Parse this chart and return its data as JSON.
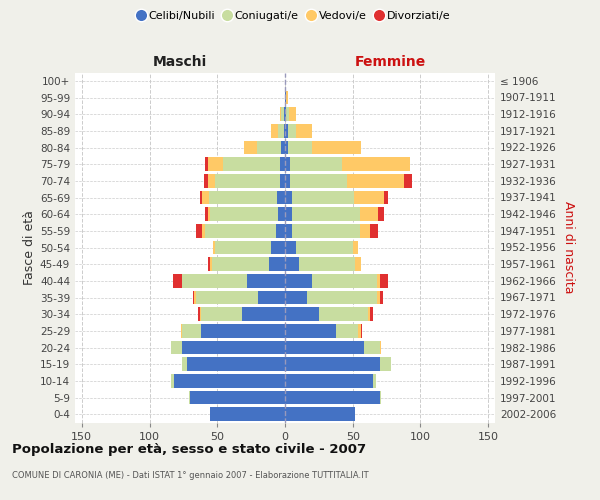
{
  "age_groups": [
    "100+",
    "95-99",
    "90-94",
    "85-89",
    "80-84",
    "75-79",
    "70-74",
    "65-69",
    "60-64",
    "55-59",
    "50-54",
    "45-49",
    "40-44",
    "35-39",
    "30-34",
    "25-29",
    "20-24",
    "15-19",
    "10-14",
    "5-9",
    "0-4"
  ],
  "birth_years": [
    "≤ 1906",
    "1907-1911",
    "1912-1916",
    "1917-1921",
    "1922-1926",
    "1927-1931",
    "1932-1936",
    "1937-1941",
    "1942-1946",
    "1947-1951",
    "1952-1956",
    "1957-1961",
    "1962-1966",
    "1967-1971",
    "1972-1976",
    "1977-1981",
    "1982-1986",
    "1987-1991",
    "1992-1996",
    "1997-2001",
    "2002-2006"
  ],
  "males": {
    "celibi": [
      0,
      0,
      1,
      1,
      3,
      4,
      4,
      6,
      5,
      7,
      10,
      12,
      28,
      20,
      32,
      62,
      76,
      72,
      82,
      70,
      55
    ],
    "coniugati": [
      0,
      0,
      2,
      4,
      18,
      42,
      48,
      50,
      50,
      52,
      42,
      42,
      48,
      46,
      30,
      14,
      8,
      4,
      2,
      1,
      0
    ],
    "vedovi": [
      0,
      0,
      1,
      5,
      9,
      11,
      5,
      5,
      2,
      2,
      1,
      1,
      0,
      1,
      1,
      1,
      0,
      0,
      0,
      0,
      0
    ],
    "divorziati": [
      0,
      0,
      0,
      0,
      0,
      2,
      3,
      2,
      2,
      5,
      0,
      2,
      7,
      1,
      1,
      0,
      0,
      0,
      0,
      0,
      0
    ]
  },
  "females": {
    "nubili": [
      0,
      1,
      1,
      2,
      2,
      4,
      4,
      5,
      5,
      5,
      8,
      10,
      20,
      16,
      25,
      38,
      58,
      70,
      65,
      70,
      52
    ],
    "coniugate": [
      0,
      0,
      2,
      6,
      18,
      38,
      42,
      46,
      50,
      50,
      42,
      42,
      48,
      52,
      36,
      16,
      12,
      8,
      2,
      1,
      0
    ],
    "vedove": [
      0,
      1,
      5,
      12,
      36,
      50,
      42,
      22,
      14,
      8,
      4,
      4,
      2,
      2,
      2,
      2,
      1,
      0,
      0,
      0,
      0
    ],
    "divorziate": [
      0,
      0,
      0,
      0,
      0,
      0,
      6,
      3,
      4,
      6,
      0,
      0,
      6,
      2,
      2,
      1,
      0,
      0,
      0,
      0,
      0
    ]
  },
  "colors": {
    "celibi": "#4472c4",
    "coniugati": "#c8dda0",
    "vedovi": "#ffc966",
    "divorziati": "#e03030"
  },
  "xlim": 155,
  "title": "Popolazione per età, sesso e stato civile - 2007",
  "subtitle": "COMUNE DI CARONIA (ME) - Dati ISTAT 1° gennaio 2007 - Elaborazione TUTTITALIA.IT",
  "xlabel_left": "Maschi",
  "xlabel_right": "Femmine",
  "ylabel_left": "Fasce di età",
  "ylabel_right": "Anni di nascita",
  "legend_labels": [
    "Celibi/Nubili",
    "Coniugati/e",
    "Vedovi/e",
    "Divorziati/e"
  ],
  "bg_color": "#f0f0ea",
  "plot_bg": "#ffffff",
  "grid_color": "#cccccc"
}
